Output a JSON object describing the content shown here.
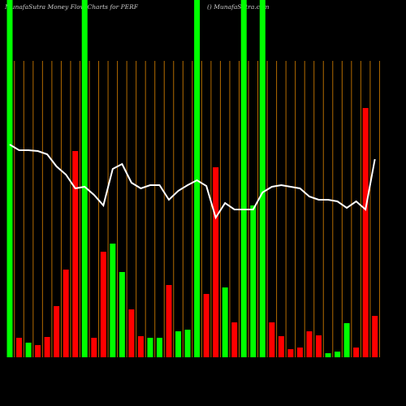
{
  "chart_data": {
    "type": "bar",
    "title": "MunafaSutra  Money Flow  Charts for PERF",
    "subtitle": "() MunafaSutra.com",
    "values": [
      440,
      24,
      18,
      15,
      25,
      63,
      108,
      254,
      440,
      24,
      130,
      140,
      105,
      59,
      26,
      24,
      24,
      89,
      32,
      34,
      440,
      78,
      234,
      86,
      43,
      440,
      187,
      440,
      43,
      26,
      10,
      12,
      32,
      27,
      5,
      7,
      42,
      12,
      307,
      51
    ],
    "colors": [
      "#00ff00",
      "#ff0000",
      "#00ff00",
      "#ff0000",
      "#ff0000",
      "#ff0000",
      "#ff0000",
      "#ff0000",
      "#00ff00",
      "#ff0000",
      "#ff0000",
      "#00ff00",
      "#00ff00",
      "#ff0000",
      "#ff0000",
      "#00ff00",
      "#00ff00",
      "#ff0000",
      "#00ff00",
      "#00ff00",
      "#00ff00",
      "#ff0000",
      "#ff0000",
      "#00ff00",
      "#ff0000",
      "#00ff00",
      "#00ff00",
      "#00ff00",
      "#ff0000",
      "#ff0000",
      "#ff0000",
      "#ff0000",
      "#ff0000",
      "#ff0000",
      "#00ff00",
      "#00ff00",
      "#00ff00",
      "#ff0000",
      "#ff0000",
      "#ff0000"
    ],
    "line": {
      "color": "#ffffff",
      "values": [
        262,
        255,
        255,
        254,
        250,
        235,
        225,
        208,
        210,
        200,
        187,
        232,
        238,
        215,
        208,
        212,
        212,
        194,
        205,
        212,
        218,
        211,
        172,
        190,
        182,
        182,
        182,
        203,
        210,
        212,
        210,
        208,
        198,
        194,
        194,
        192,
        184,
        192,
        182,
        244
      ]
    },
    "grid_color": "#b36b00"
  }
}
